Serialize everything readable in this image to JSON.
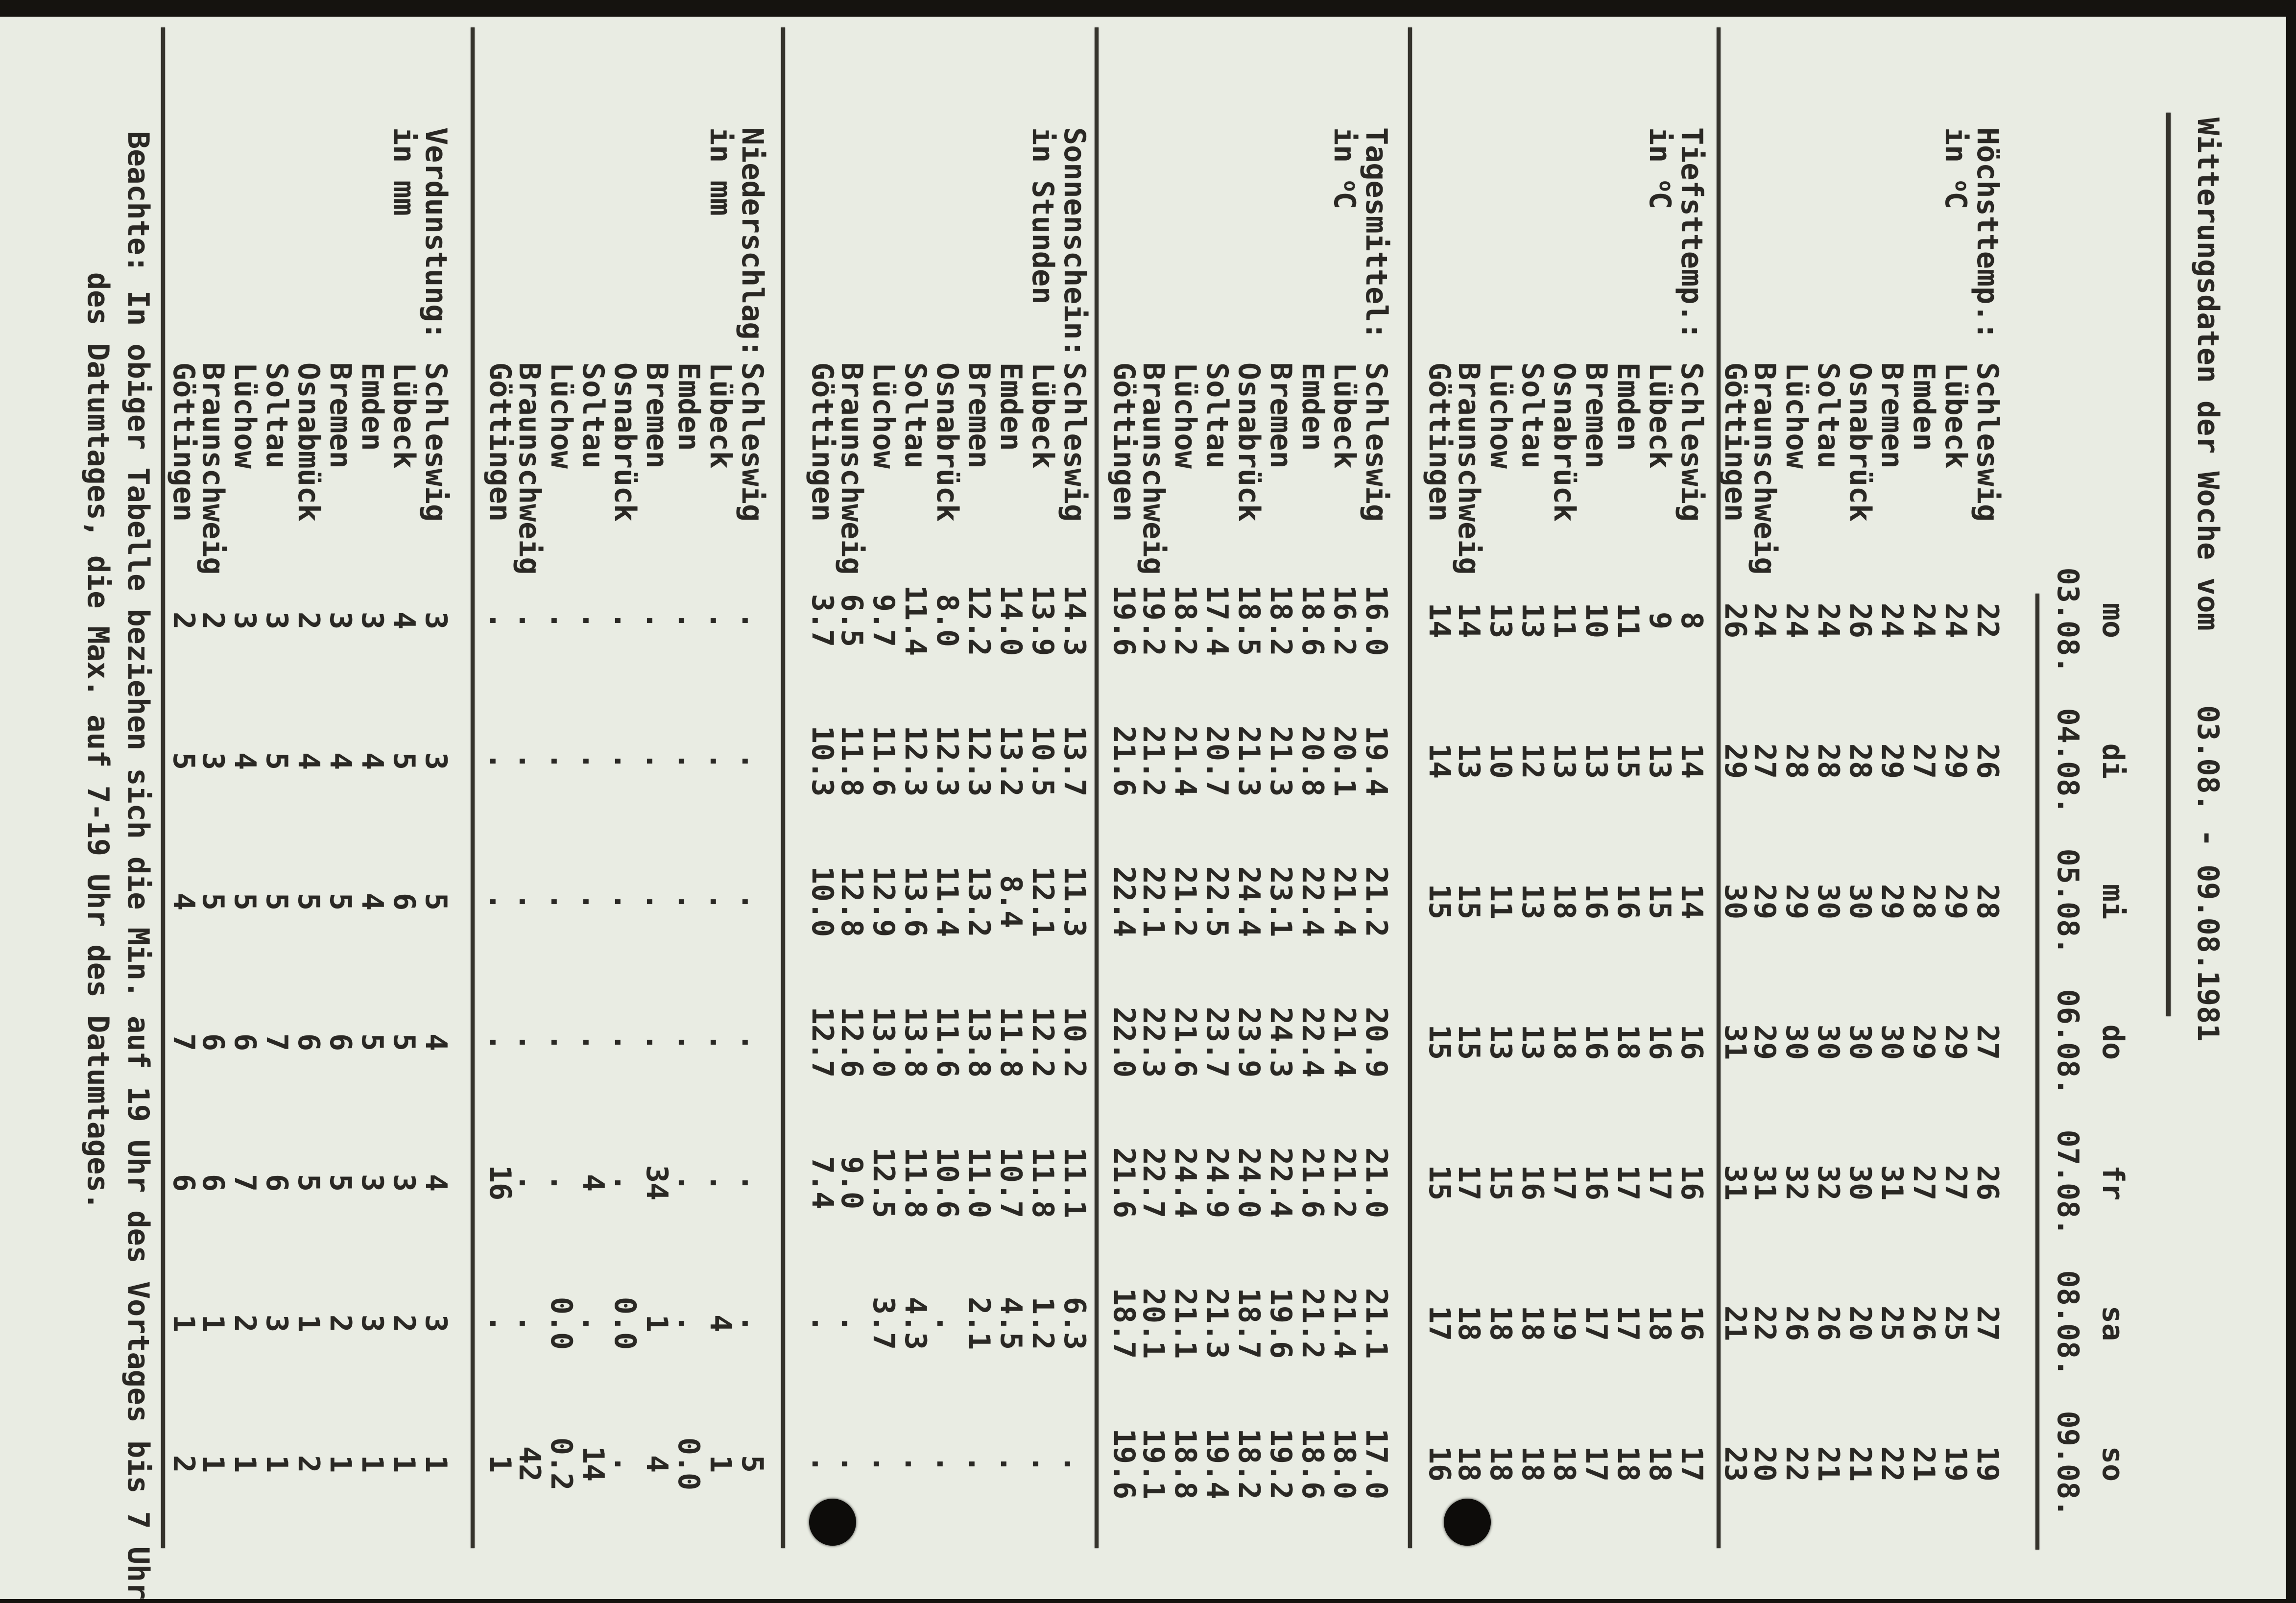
{
  "title": {
    "text": "Witterungsdaten der Woche vom",
    "date_range": "03.08. - 09.08.1981"
  },
  "header": {
    "days": [
      "mo",
      "di",
      "mi",
      "do",
      "fr",
      "sa",
      "so"
    ],
    "dates": [
      "03.08.",
      "04.08.",
      "05.08.",
      "06.08.",
      "07.08.",
      "08.08.",
      "09.08."
    ]
  },
  "no_data_symbol": ".",
  "table": {
    "blocks": [
      {
        "label": "Höchsttemp.:",
        "unit": "in °C",
        "rows": [
          {
            "city": "Schleswig",
            "values": [
              "22",
              "26",
              "28",
              "27",
              "26",
              "27",
              "19"
            ]
          },
          {
            "city": "Lübeck",
            "values": [
              "24",
              "29",
              "29",
              "29",
              "27",
              "25",
              "19"
            ]
          },
          {
            "city": "Emden",
            "values": [
              "24",
              "27",
              "28",
              "29",
              "27",
              "26",
              "21"
            ]
          },
          {
            "city": "Bremen",
            "values": [
              "24",
              "29",
              "29",
              "30",
              "31",
              "25",
              "22"
            ]
          },
          {
            "city": "Osnabrück",
            "values": [
              "26",
              "28",
              "30",
              "30",
              "30",
              "20",
              "21"
            ]
          },
          {
            "city": "Soltau",
            "values": [
              "24",
              "28",
              "30",
              "30",
              "32",
              "26",
              "21"
            ]
          },
          {
            "city": "Lüchow",
            "values": [
              "24",
              "28",
              "29",
              "30",
              "32",
              "26",
              "22"
            ]
          },
          {
            "city": "Braunschweig",
            "values": [
              "24",
              "27",
              "29",
              "29",
              "31",
              "22",
              "20"
            ]
          },
          {
            "city": "Göttingen",
            "values": [
              "26",
              "29",
              "30",
              "31",
              "31",
              "21",
              "23"
            ]
          }
        ]
      },
      {
        "label": "Tiefsttemp.:",
        "unit": "in °C",
        "rows": [
          {
            "city": "Schleswig",
            "values": [
              "8",
              "14",
              "14",
              "16",
              "16",
              "16",
              "17"
            ]
          },
          {
            "city": "Lübeck",
            "values": [
              "9",
              "13",
              "15",
              "16",
              "17",
              "18",
              "18"
            ]
          },
          {
            "city": "Emden",
            "values": [
              "11",
              "15",
              "16",
              "18",
              "17",
              "17",
              "18"
            ]
          },
          {
            "city": "Bremen",
            "values": [
              "10",
              "13",
              "16",
              "16",
              "16",
              "17",
              "17"
            ]
          },
          {
            "city": "Osnabrück",
            "values": [
              "11",
              "13",
              "18",
              "18",
              "17",
              "19",
              "18"
            ]
          },
          {
            "city": "Soltau",
            "values": [
              "13",
              "12",
              "13",
              "13",
              "16",
              "18",
              "18"
            ]
          },
          {
            "city": "Lüchow",
            "values": [
              "13",
              "10",
              "11",
              "13",
              "15",
              "18",
              "18"
            ]
          },
          {
            "city": "Braunschweig",
            "values": [
              "14",
              "13",
              "15",
              "15",
              "17",
              "18",
              "18"
            ]
          },
          {
            "city": "Göttingen",
            "values": [
              "14",
              "14",
              "15",
              "15",
              "15",
              "17",
              "16"
            ]
          }
        ]
      },
      {
        "label": "Tagesmittel:",
        "unit": "in °C",
        "rows": [
          {
            "city": "Schleswig",
            "values": [
              "16.0",
              "19.4",
              "21.2",
              "20.9",
              "21.0",
              "21.1",
              "17.0"
            ]
          },
          {
            "city": "Lübeck",
            "values": [
              "16.2",
              "20.1",
              "21.4",
              "21.4",
              "21.2",
              "21.4",
              "18.0"
            ]
          },
          {
            "city": "Emden",
            "values": [
              "18.6",
              "20.8",
              "22.4",
              "22.4",
              "21.6",
              "21.2",
              "18.6"
            ]
          },
          {
            "city": "Bremen",
            "values": [
              "18.2",
              "21.3",
              "23.1",
              "24.3",
              "22.4",
              "19.6",
              "19.2"
            ]
          },
          {
            "city": "Osnabrück",
            "values": [
              "18.5",
              "21.3",
              "24.4",
              "23.9",
              "24.0",
              "18.7",
              "18.2"
            ]
          },
          {
            "city": "Soltau",
            "values": [
              "17.4",
              "20.7",
              "22.5",
              "23.7",
              "24.9",
              "21.3",
              "19.4"
            ]
          },
          {
            "city": "Lüchow",
            "values": [
              "18.2",
              "21.4",
              "21.2",
              "21.6",
              "24.4",
              "21.1",
              "18.8"
            ]
          },
          {
            "city": "Braunschweig",
            "values": [
              "19.2",
              "21.2",
              "22.1",
              "22.3",
              "22.7",
              "20.1",
              "19.1"
            ]
          },
          {
            "city": "Göttingen",
            "values": [
              "19.6",
              "21.6",
              "22.4",
              "22.0",
              "21.6",
              "18.7",
              "19.6"
            ]
          }
        ]
      },
      {
        "label": "Sonnenschein:",
        "unit": "in Stunden",
        "rows": [
          {
            "city": "Schleswig",
            "values": [
              "14.3",
              "13.7",
              "11.3",
              "10.2",
              "11.1",
              "6.3",
              "."
            ]
          },
          {
            "city": "Lübeck",
            "values": [
              "13.9",
              "10.5",
              "12.1",
              "12.2",
              "11.8",
              "1.2",
              "."
            ]
          },
          {
            "city": "Emden",
            "values": [
              "14.0",
              "13.2",
              "8.4",
              "11.8",
              "10.7",
              "4.5",
              "."
            ]
          },
          {
            "city": "Bremen",
            "values": [
              "12.2",
              "12.3",
              "13.2",
              "13.8",
              "11.0",
              "2.1",
              "."
            ]
          },
          {
            "city": "Osnabrück",
            "values": [
              "8.0",
              "12.3",
              "11.4",
              "11.6",
              "10.6",
              ".",
              "."
            ]
          },
          {
            "city": "Soltau",
            "values": [
              "11.4",
              "12.3",
              "13.6",
              "13.8",
              "11.8",
              "4.3",
              "."
            ]
          },
          {
            "city": "Lüchow",
            "values": [
              "9.7",
              "11.6",
              "12.9",
              "13.0",
              "12.5",
              "3.7",
              "."
            ]
          },
          {
            "city": "Braunschweig",
            "values": [
              "6.5",
              "11.8",
              "12.8",
              "12.6",
              "9.0",
              ".",
              "."
            ]
          },
          {
            "city": "Göttingen",
            "values": [
              "3.7",
              "10.3",
              "10.0",
              "12.7",
              "7.4",
              ".",
              "."
            ]
          }
        ]
      },
      {
        "label": "Niederschlag:",
        "unit": "in mm",
        "rows": [
          {
            "city": "Schleswig",
            "values": [
              ".",
              ".",
              ".",
              ".",
              ".",
              ".",
              "5"
            ]
          },
          {
            "city": "Lübeck",
            "values": [
              ".",
              ".",
              ".",
              ".",
              ".",
              "4",
              "1"
            ]
          },
          {
            "city": "Emden",
            "values": [
              ".",
              ".",
              ".",
              ".",
              ".",
              ".",
              "0.0"
            ]
          },
          {
            "city": "Bremen",
            "values": [
              ".",
              ".",
              ".",
              ".",
              "34",
              "1",
              "4"
            ]
          },
          {
            "city": "Osnabrück",
            "values": [
              ".",
              ".",
              ".",
              ".",
              ".",
              "0.0",
              "."
            ]
          },
          {
            "city": "Soltau",
            "values": [
              ".",
              ".",
              ".",
              ".",
              "4",
              ".",
              "14"
            ]
          },
          {
            "city": "Lüchow",
            "values": [
              ".",
              ".",
              ".",
              ".",
              ".",
              "0.0",
              "0.2"
            ]
          },
          {
            "city": "Braunschweig",
            "values": [
              ".",
              ".",
              ".",
              ".",
              ".",
              ".",
              "42"
            ]
          },
          {
            "city": "Göttingen",
            "values": [
              ".",
              ".",
              ".",
              ".",
              "16",
              ".",
              "1"
            ]
          }
        ]
      },
      {
        "label": "Verdunstung:",
        "unit": "in mm",
        "rows": [
          {
            "city": "Schleswig",
            "values": [
              "3",
              "3",
              "5",
              "4",
              "4",
              "3",
              "1"
            ]
          },
          {
            "city": "Lübeck",
            "values": [
              "4",
              "5",
              "6",
              "5",
              "3",
              "2",
              "1"
            ]
          },
          {
            "city": "Emden",
            "values": [
              "3",
              "4",
              "4",
              "5",
              "3",
              "3",
              "1"
            ]
          },
          {
            "city": "Bremen",
            "values": [
              "3",
              "4",
              "5",
              "6",
              "5",
              "2",
              "1"
            ]
          },
          {
            "city": "Osnabmück",
            "values": [
              "2",
              "4",
              "5",
              "6",
              "5",
              "1",
              "2"
            ]
          },
          {
            "city": "Soltau",
            "values": [
              "3",
              "5",
              "5",
              "7",
              "6",
              "3",
              "1"
            ]
          },
          {
            "city": "Lüchow",
            "values": [
              "3",
              "4",
              "5",
              "6",
              "7",
              "2",
              "1"
            ]
          },
          {
            "city": "Braunschweig",
            "values": [
              "2",
              "3",
              "5",
              "6",
              "6",
              "1",
              "1"
            ]
          },
          {
            "city": "Göttingen",
            "values": [
              "2",
              "5",
              "4",
              "7",
              "6",
              "1",
              "2"
            ]
          }
        ]
      }
    ]
  },
  "footnote": {
    "line1": "Beachte: In obiger Tabelle beziehen sich die Min. auf 19 Uhr des Vortages bis 7 Uhr",
    "line2": "des Datumtages, die Max. auf 7-19 Uhr des Datumtages."
  },
  "colors": {
    "paper": "#e9ece3",
    "ink": "#2a2824",
    "rule": "#35332c",
    "scanner_edge": "#15130f"
  }
}
